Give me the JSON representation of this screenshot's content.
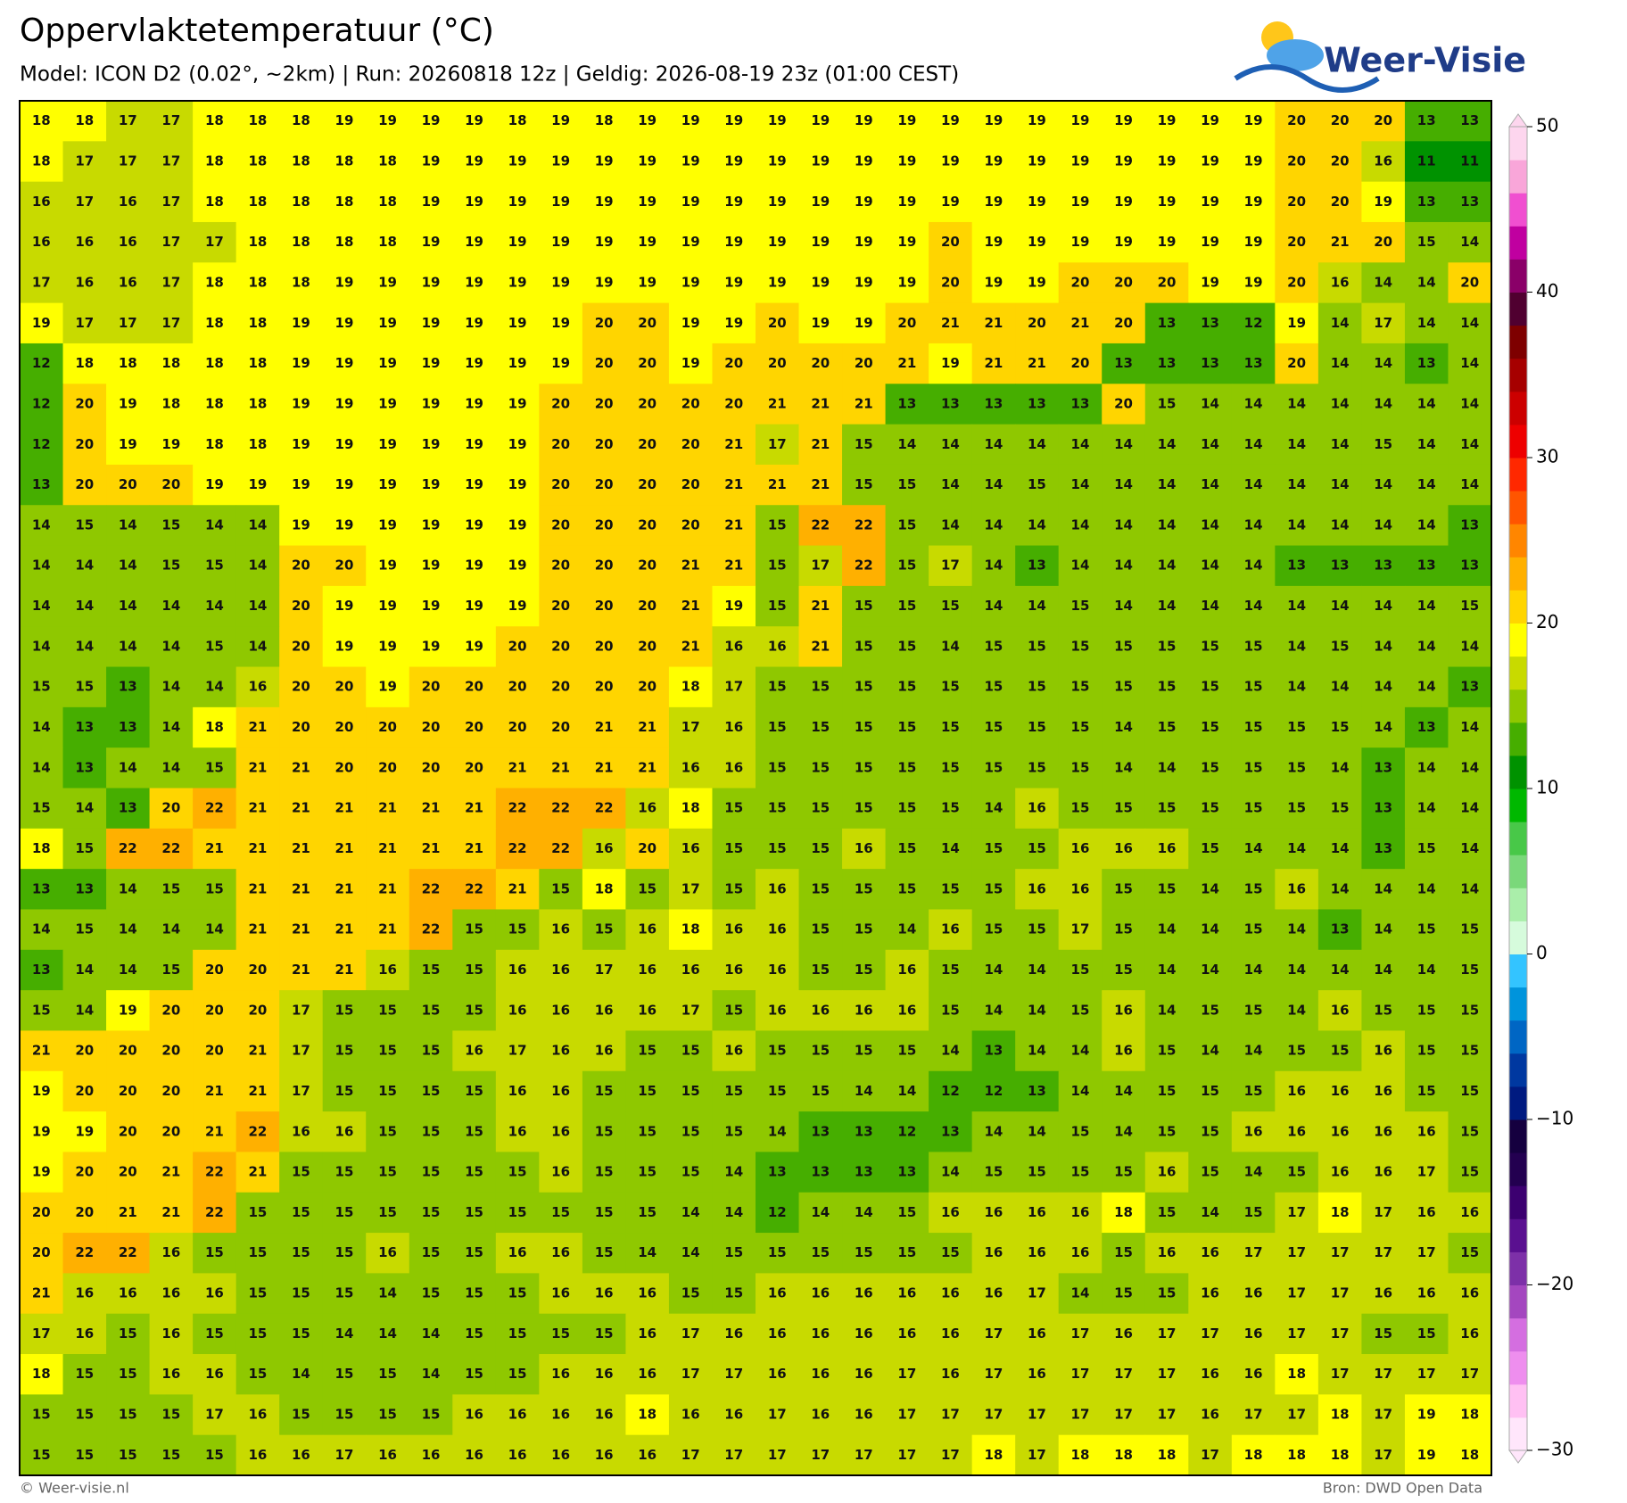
{
  "header": {
    "title": "Oppervlaktetemperatuur (°C)",
    "subtitle": "Model: ICON D2 (0.02°, ~2km)  |  Run: 20260818 12z  |  Geldig: 2026-08-19 23z (01:00 CEST)"
  },
  "logo": {
    "text": "Weer-Visie"
  },
  "map": {
    "rows": [
      [
        18,
        18,
        17,
        17,
        18,
        18,
        18,
        19,
        19,
        19,
        19,
        18,
        19,
        18,
        19,
        19,
        19,
        19,
        19,
        19,
        19,
        19,
        19,
        19,
        19,
        19,
        19,
        19,
        19,
        20,
        20,
        20,
        13,
        13
      ],
      [
        18,
        17,
        17,
        17,
        18,
        18,
        18,
        18,
        18,
        19,
        19,
        19,
        19,
        19,
        19,
        19,
        19,
        19,
        19,
        19,
        19,
        19,
        19,
        19,
        19,
        19,
        19,
        19,
        19,
        20,
        20,
        16,
        11,
        11
      ],
      [
        16,
        17,
        16,
        17,
        18,
        18,
        18,
        18,
        18,
        19,
        19,
        19,
        19,
        19,
        19,
        19,
        19,
        19,
        19,
        19,
        19,
        19,
        19,
        19,
        19,
        19,
        19,
        19,
        19,
        20,
        20,
        19,
        13,
        13
      ],
      [
        16,
        16,
        16,
        17,
        17,
        18,
        18,
        18,
        18,
        19,
        19,
        19,
        19,
        19,
        19,
        19,
        19,
        19,
        19,
        19,
        19,
        20,
        19,
        19,
        19,
        19,
        19,
        19,
        19,
        20,
        21,
        20,
        15,
        14
      ],
      [
        17,
        16,
        16,
        17,
        18,
        18,
        18,
        19,
        19,
        19,
        19,
        19,
        19,
        19,
        19,
        19,
        19,
        19,
        19,
        19,
        19,
        20,
        19,
        19,
        20,
        20,
        20,
        19,
        19,
        20,
        16,
        14,
        14,
        20
      ],
      [
        19,
        17,
        17,
        17,
        18,
        18,
        19,
        19,
        19,
        19,
        19,
        19,
        19,
        20,
        20,
        19,
        19,
        20,
        19,
        19,
        20,
        21,
        21,
        20,
        21,
        20,
        13,
        13,
        12,
        19,
        14,
        17,
        14,
        14
      ],
      [
        12,
        18,
        18,
        18,
        18,
        18,
        19,
        19,
        19,
        19,
        19,
        19,
        19,
        20,
        20,
        19,
        20,
        20,
        20,
        20,
        21,
        19,
        21,
        21,
        20,
        13,
        13,
        13,
        13,
        20,
        14,
        14,
        13,
        14
      ],
      [
        12,
        20,
        19,
        18,
        18,
        18,
        19,
        19,
        19,
        19,
        19,
        19,
        20,
        20,
        20,
        20,
        20,
        21,
        21,
        21,
        13,
        13,
        13,
        13,
        13,
        20,
        15,
        14,
        14,
        14,
        14,
        14,
        14,
        14
      ],
      [
        12,
        20,
        19,
        19,
        18,
        18,
        19,
        19,
        19,
        19,
        19,
        19,
        20,
        20,
        20,
        20,
        21,
        17,
        21,
        15,
        14,
        14,
        14,
        14,
        14,
        14,
        14,
        14,
        14,
        14,
        14,
        15,
        14,
        14
      ],
      [
        13,
        20,
        20,
        20,
        19,
        19,
        19,
        19,
        19,
        19,
        19,
        19,
        20,
        20,
        20,
        20,
        21,
        21,
        21,
        15,
        15,
        14,
        14,
        15,
        14,
        14,
        14,
        14,
        14,
        14,
        14,
        14,
        14,
        14
      ],
      [
        14,
        15,
        14,
        15,
        14,
        14,
        19,
        19,
        19,
        19,
        19,
        19,
        20,
        20,
        20,
        20,
        21,
        15,
        22,
        22,
        15,
        14,
        14,
        14,
        14,
        14,
        14,
        14,
        14,
        14,
        14,
        14,
        14,
        13
      ],
      [
        14,
        14,
        14,
        15,
        15,
        14,
        20,
        20,
        19,
        19,
        19,
        19,
        20,
        20,
        20,
        21,
        21,
        15,
        17,
        22,
        15,
        17,
        14,
        13,
        14,
        14,
        14,
        14,
        14,
        13,
        13,
        13,
        13,
        13
      ],
      [
        14,
        14,
        14,
        14,
        14,
        14,
        20,
        19,
        19,
        19,
        19,
        19,
        20,
        20,
        20,
        21,
        19,
        15,
        21,
        15,
        15,
        15,
        14,
        14,
        15,
        14,
        14,
        14,
        14,
        14,
        14,
        14,
        14,
        15
      ],
      [
        14,
        14,
        14,
        14,
        15,
        14,
        20,
        19,
        19,
        19,
        19,
        20,
        20,
        20,
        20,
        21,
        16,
        16,
        21,
        15,
        15,
        14,
        15,
        15,
        15,
        15,
        15,
        15,
        15,
        14,
        15,
        14,
        14,
        14
      ],
      [
        15,
        15,
        13,
        14,
        14,
        16,
        20,
        20,
        19,
        20,
        20,
        20,
        20,
        20,
        20,
        18,
        17,
        15,
        15,
        15,
        15,
        15,
        15,
        15,
        15,
        15,
        15,
        15,
        15,
        14,
        14,
        14,
        14,
        13
      ],
      [
        14,
        13,
        13,
        14,
        18,
        21,
        20,
        20,
        20,
        20,
        20,
        20,
        20,
        21,
        21,
        17,
        16,
        15,
        15,
        15,
        15,
        15,
        15,
        15,
        15,
        14,
        15,
        15,
        15,
        15,
        15,
        14,
        13,
        14
      ],
      [
        14,
        13,
        14,
        14,
        15,
        21,
        21,
        20,
        20,
        20,
        20,
        21,
        21,
        21,
        21,
        16,
        16,
        15,
        15,
        15,
        15,
        15,
        15,
        15,
        15,
        14,
        14,
        15,
        15,
        15,
        14,
        13,
        14,
        14
      ],
      [
        15,
        14,
        13,
        20,
        22,
        21,
        21,
        21,
        21,
        21,
        21,
        22,
        22,
        22,
        16,
        18,
        15,
        15,
        15,
        15,
        15,
        15,
        14,
        16,
        15,
        15,
        15,
        15,
        15,
        15,
        15,
        13,
        14,
        14
      ],
      [
        18,
        15,
        22,
        22,
        21,
        21,
        21,
        21,
        21,
        21,
        21,
        22,
        22,
        16,
        20,
        16,
        15,
        15,
        15,
        16,
        15,
        14,
        15,
        15,
        16,
        16,
        16,
        15,
        14,
        14,
        14,
        13,
        15,
        14
      ],
      [
        13,
        13,
        14,
        15,
        15,
        21,
        21,
        21,
        21,
        22,
        22,
        21,
        15,
        18,
        15,
        17,
        15,
        16,
        15,
        15,
        15,
        15,
        15,
        16,
        16,
        15,
        15,
        14,
        15,
        16,
        14,
        14,
        14,
        14
      ],
      [
        14,
        15,
        14,
        14,
        14,
        21,
        21,
        21,
        21,
        22,
        15,
        15,
        16,
        15,
        16,
        18,
        16,
        16,
        15,
        15,
        14,
        16,
        15,
        15,
        17,
        15,
        14,
        14,
        15,
        14,
        13,
        14,
        15,
        15
      ],
      [
        13,
        14,
        14,
        15,
        20,
        20,
        21,
        21,
        16,
        15,
        15,
        16,
        16,
        17,
        16,
        16,
        16,
        16,
        15,
        15,
        16,
        15,
        14,
        14,
        15,
        15,
        14,
        14,
        14,
        14,
        14,
        14,
        14,
        15
      ],
      [
        15,
        14,
        19,
        20,
        20,
        20,
        17,
        15,
        15,
        15,
        15,
        16,
        16,
        16,
        16,
        17,
        15,
        16,
        16,
        16,
        16,
        15,
        14,
        14,
        15,
        16,
        14,
        15,
        15,
        14,
        16,
        15,
        15,
        15
      ],
      [
        21,
        20,
        20,
        20,
        20,
        21,
        17,
        15,
        15,
        15,
        16,
        17,
        16,
        16,
        15,
        15,
        16,
        15,
        15,
        15,
        15,
        14,
        13,
        14,
        14,
        16,
        15,
        14,
        14,
        15,
        15,
        16,
        15,
        15
      ],
      [
        19,
        20,
        20,
        20,
        21,
        21,
        17,
        15,
        15,
        15,
        15,
        16,
        16,
        15,
        15,
        15,
        15,
        15,
        15,
        14,
        14,
        12,
        12,
        13,
        14,
        14,
        15,
        15,
        15,
        16,
        16,
        16,
        15,
        15
      ],
      [
        19,
        19,
        20,
        20,
        21,
        22,
        16,
        16,
        15,
        15,
        15,
        16,
        16,
        15,
        15,
        15,
        15,
        14,
        13,
        13,
        12,
        13,
        14,
        14,
        15,
        14,
        15,
        15,
        16,
        16,
        16,
        16,
        16,
        15
      ],
      [
        19,
        20,
        20,
        21,
        22,
        21,
        15,
        15,
        15,
        15,
        15,
        15,
        16,
        15,
        15,
        15,
        14,
        13,
        13,
        13,
        13,
        14,
        15,
        15,
        15,
        15,
        16,
        15,
        14,
        15,
        16,
        16,
        17,
        15
      ],
      [
        20,
        20,
        21,
        21,
        22,
        15,
        15,
        15,
        15,
        15,
        15,
        15,
        15,
        15,
        15,
        14,
        14,
        12,
        14,
        14,
        15,
        16,
        16,
        16,
        16,
        18,
        15,
        14,
        15,
        17,
        18,
        17,
        16,
        16
      ],
      [
        20,
        22,
        22,
        16,
        15,
        15,
        15,
        15,
        16,
        15,
        15,
        16,
        16,
        15,
        14,
        14,
        15,
        15,
        15,
        15,
        15,
        15,
        16,
        16,
        16,
        15,
        16,
        16,
        17,
        17,
        17,
        17,
        17,
        15
      ],
      [
        21,
        16,
        16,
        16,
        16,
        15,
        15,
        15,
        14,
        15,
        15,
        15,
        16,
        16,
        16,
        15,
        15,
        16,
        16,
        16,
        16,
        16,
        16,
        17,
        14,
        15,
        15,
        16,
        16,
        17,
        17,
        16,
        16,
        16
      ],
      [
        17,
        16,
        15,
        16,
        15,
        15,
        15,
        14,
        14,
        14,
        15,
        15,
        15,
        15,
        16,
        17,
        16,
        16,
        16,
        16,
        16,
        16,
        17,
        16,
        17,
        16,
        17,
        17,
        16,
        17,
        17,
        15,
        15,
        16
      ],
      [
        18,
        15,
        15,
        16,
        16,
        15,
        14,
        15,
        15,
        14,
        15,
        15,
        16,
        16,
        16,
        17,
        17,
        16,
        16,
        16,
        17,
        16,
        17,
        16,
        17,
        17,
        17,
        16,
        16,
        18,
        17,
        17,
        17,
        17
      ],
      [
        15,
        15,
        15,
        15,
        17,
        16,
        15,
        15,
        15,
        15,
        16,
        16,
        16,
        16,
        18,
        16,
        16,
        17,
        16,
        16,
        17,
        17,
        17,
        17,
        17,
        17,
        17,
        16,
        17,
        17,
        18,
        17,
        19,
        18
      ],
      [
        15,
        15,
        15,
        15,
        15,
        16,
        16,
        17,
        16,
        16,
        16,
        16,
        16,
        16,
        16,
        17,
        17,
        17,
        17,
        17,
        17,
        17,
        18,
        17,
        18,
        18,
        18,
        17,
        18,
        18,
        18,
        17,
        19,
        18
      ]
    ]
  },
  "colorbar": {
    "lim": [
      -30,
      50
    ],
    "ticks": [
      {
        "value": -30,
        "label": "−30"
      },
      {
        "value": -20,
        "label": "−20"
      },
      {
        "value": -10,
        "label": "−10"
      },
      0,
      10,
      20,
      30,
      40,
      50
    ],
    "colors": [
      "#ffe6fb",
      "#ffc0f3",
      "#ee8eee",
      "#d46ee0",
      "#a447bf",
      "#7d30a8",
      "#5a1090",
      "#3c0070",
      "#230050",
      "#15003f",
      "#001a80",
      "#0038a0",
      "#0066c4",
      "#0094dc",
      "#33c4ff",
      "#d6fbdc",
      "#aaeeaa",
      "#7ad87a",
      "#48c848",
      "#00b800",
      "#009200",
      "#46ae00",
      "#8fc800",
      "#c8da00",
      "#ffff00",
      "#ffd500",
      "#ffb000",
      "#ff8600",
      "#ff5500",
      "#ff2800",
      "#ee0000",
      "#cc0000",
      "#a60000",
      "#7e0000",
      "#500030",
      "#8a0068",
      "#c000a0",
      "#f04fd0",
      "#f9a6d9",
      "#fdd6ee"
    ]
  },
  "footer": {
    "left": "© Weer-visie.nl",
    "right": "Bron: DWD Open Data"
  }
}
